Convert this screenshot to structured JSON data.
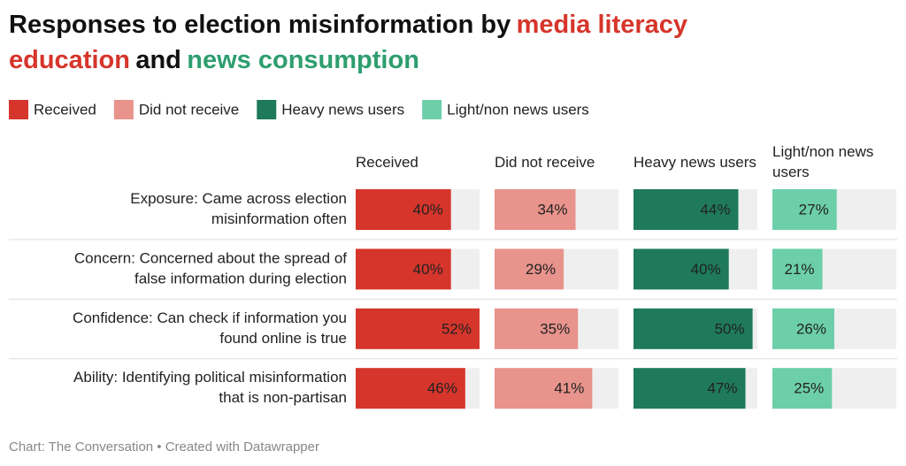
{
  "chart_data": {
    "type": "bar",
    "title_parts": [
      {
        "text": "Responses to election misinformation by",
        "color": "#111111"
      },
      {
        "text": "media literacy education",
        "color": "#d6352b"
      },
      {
        "text": "and",
        "color": "#111111"
      },
      {
        "text": "news consumption",
        "color": "#2e9e6f"
      }
    ],
    "categories": [
      [
        "Exposure: Came across election",
        "misinformation often"
      ],
      [
        "Concern: Concerned about the spread of",
        "false information during election"
      ],
      [
        "Confidence: Can check if information you",
        "found online is true"
      ],
      [
        "Ability: Identifying political misinformation",
        "that is non-partisan"
      ]
    ],
    "xlim": [
      0,
      52
    ],
    "series": [
      {
        "name": "Received",
        "color": "#d6352b",
        "label_color": "#ffffff",
        "values": [
          40,
          40,
          52,
          46
        ],
        "value_labels": [
          "40%",
          "40%",
          "52%",
          "46%"
        ]
      },
      {
        "name": "Did not receive",
        "color": "#e8938c",
        "label_color": "#ffffff",
        "values": [
          34,
          29,
          35,
          41
        ],
        "value_labels": [
          "34%",
          "29%",
          "35%",
          "41%"
        ]
      },
      {
        "name": "Heavy news users",
        "color": "#1e7a5a",
        "label_color": "#ffffff",
        "values": [
          44,
          40,
          50,
          47
        ],
        "value_labels": [
          "44%",
          "40%",
          "50%",
          "47%"
        ]
      },
      {
        "name": "Light/non news users",
        "color": "#6ccfa9",
        "label_color": "#1a3a2e",
        "values": [
          27,
          21,
          26,
          25
        ],
        "value_labels": [
          "27%",
          "21%",
          "26%",
          "25%"
        ]
      }
    ],
    "source": "Chart: The Conversation • Created with Datawrapper"
  }
}
